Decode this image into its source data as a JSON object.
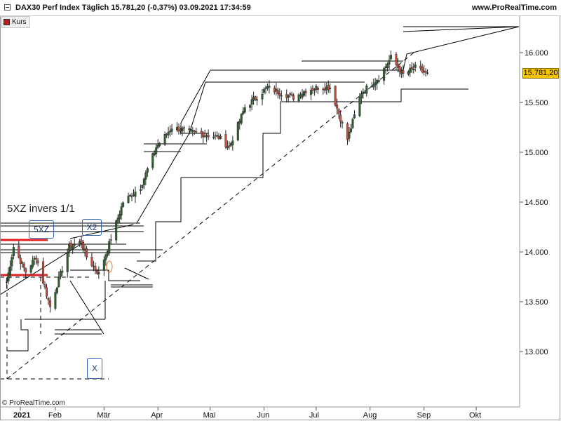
{
  "header": {
    "title": "DAX30 Perf Index Täglich 15.781,20 (-0,37%) 03.09.2021 17:34:59",
    "site": "www.ProRealTime.com"
  },
  "legend": {
    "label": "Kurs",
    "color": "#b02020"
  },
  "copyright": "© ProRealTime.com",
  "price_tag": "15.781,20",
  "annotations": {
    "pattern_label": "5XZ invers 1/1",
    "box_5xz": "5XZ",
    "box_x2": "X2",
    "box_x": "X"
  },
  "colors": {
    "up": "#2f5e2f",
    "down": "#c84b3b",
    "line": "#000000",
    "red_marker": "#e02020",
    "tag": "#f5c400"
  },
  "chart_data": {
    "type": "candlestick",
    "title": "DAX30 Perf Index Täglich",
    "yticks": [
      "16.000",
      "15.500",
      "15.000",
      "14.500",
      "14.000",
      "13.500",
      "13.000"
    ],
    "xticks": [
      "2021",
      "Feb",
      "Mär",
      "Apr",
      "Mai",
      "Jun",
      "Jul",
      "Aug",
      "Sep",
      "Okt"
    ],
    "ylim": [
      12700,
      16300
    ],
    "last_close": 15781.2,
    "change_pct": -0.37,
    "anchors": [
      {
        "date": "2021-01-04",
        "close": 13700
      },
      {
        "date": "2021-01-08",
        "close": 14050
      },
      {
        "date": "2021-01-15",
        "close": 13800
      },
      {
        "date": "2021-01-21",
        "close": 13950
      },
      {
        "date": "2021-01-29",
        "close": 13450
      },
      {
        "date": "2021-02-09",
        "close": 14050
      },
      {
        "date": "2021-02-16",
        "close": 14100
      },
      {
        "date": "2021-02-19",
        "close": 13950
      },
      {
        "date": "2021-02-26",
        "close": 13780
      },
      {
        "date": "2021-03-04",
        "close": 14080
      },
      {
        "date": "2021-03-12",
        "close": 14500
      },
      {
        "date": "2021-03-22",
        "close": 14650
      },
      {
        "date": "2021-03-31",
        "close": 15050
      },
      {
        "date": "2021-04-09",
        "close": 15250
      },
      {
        "date": "2021-04-21",
        "close": 15200
      },
      {
        "date": "2021-05-06",
        "close": 15150
      },
      {
        "date": "2021-05-12",
        "close": 15050
      },
      {
        "date": "2021-05-21",
        "close": 15450
      },
      {
        "date": "2021-06-03",
        "close": 15650
      },
      {
        "date": "2021-06-10",
        "close": 15600
      },
      {
        "date": "2021-06-18",
        "close": 15550
      },
      {
        "date": "2021-06-25",
        "close": 15620
      },
      {
        "date": "2021-07-02",
        "close": 15650
      },
      {
        "date": "2021-07-09",
        "close": 15650
      },
      {
        "date": "2021-07-19",
        "close": 15130
      },
      {
        "date": "2021-07-27",
        "close": 15600
      },
      {
        "date": "2021-08-06",
        "close": 15750
      },
      {
        "date": "2021-08-13",
        "close": 15950
      },
      {
        "date": "2021-08-20",
        "close": 15780
      },
      {
        "date": "2021-08-27",
        "close": 15850
      },
      {
        "date": "2021-09-03",
        "close": 15781.2
      }
    ]
  }
}
